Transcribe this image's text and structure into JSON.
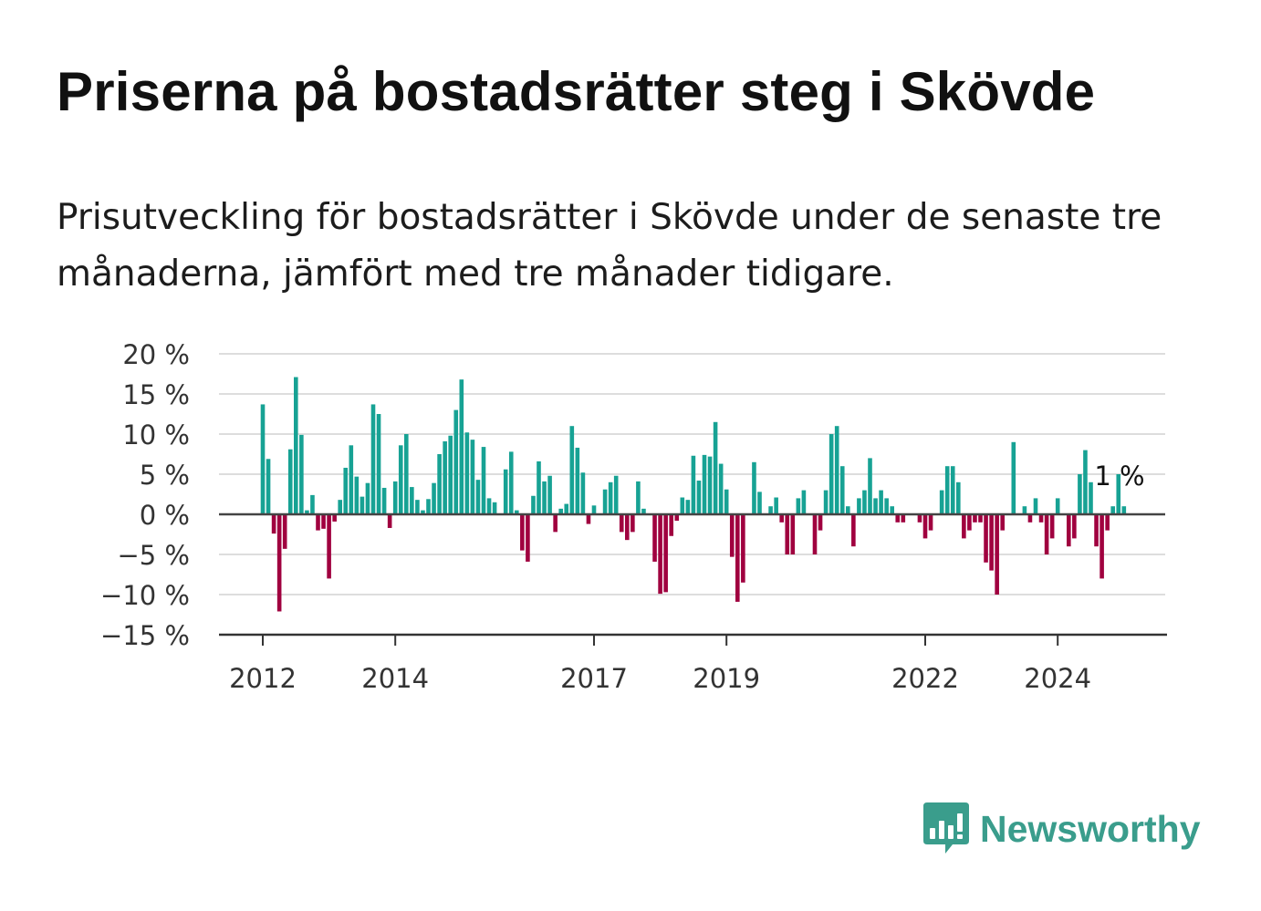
{
  "title": "Priserna på bostadsrätter steg i Skövde",
  "subtitle": "Prisutveckling för bostadsrätter i Skövde under de senaste tre månaderna, jämfört med tre månader tidigare.",
  "brand": {
    "name": "Newsworthy",
    "icon": "newsworthy-chart-bubble-icon",
    "color": "#3a9d8c"
  },
  "chart_data": {
    "type": "bar",
    "start": "2012-01",
    "frequency": "monthly",
    "y_unit": "%",
    "ylim": [
      -15,
      20
    ],
    "yticks": [
      20,
      15,
      10,
      5,
      0,
      -5,
      -10,
      -15
    ],
    "ytick_labels": [
      "20 %",
      "15 %",
      "10 %",
      "5 %",
      "0 %",
      "−5 %",
      "−10 %",
      "−15 %"
    ],
    "xticks": [
      "2012",
      "2014",
      "2017",
      "2019",
      "2022",
      "2024"
    ],
    "grid": true,
    "colors": {
      "positive": "#17a294",
      "negative": "#a0003f"
    },
    "end_label": "1 %",
    "values": [
      13.7,
      6.9,
      -2.4,
      -12.1,
      -4.3,
      8.1,
      17.1,
      9.9,
      0.5,
      2.4,
      -2.0,
      -1.8,
      -8.0,
      -0.9,
      1.8,
      5.8,
      8.6,
      4.7,
      2.2,
      3.9,
      13.7,
      12.5,
      3.3,
      -1.7,
      4.1,
      8.6,
      10.0,
      3.4,
      1.8,
      0.5,
      1.9,
      3.9,
      7.5,
      9.1,
      9.8,
      13.0,
      16.8,
      10.2,
      9.3,
      4.3,
      8.4,
      2.0,
      1.5,
      0.0,
      5.6,
      7.8,
      0.5,
      -4.5,
      -5.9,
      2.3,
      6.6,
      4.1,
      4.8,
      -2.2,
      0.7,
      1.3,
      11.0,
      8.3,
      5.2,
      -1.2,
      1.1,
      0.1,
      3.1,
      4.0,
      4.8,
      -2.2,
      -3.2,
      -2.2,
      4.1,
      0.7,
      -0.1,
      -5.9,
      -9.9,
      -9.7,
      -2.7,
      -0.8,
      2.1,
      1.8,
      7.3,
      4.2,
      7.4,
      7.2,
      11.5,
      6.3,
      3.1,
      -5.3,
      -10.9,
      -8.5,
      0.1,
      6.5,
      2.8,
      0.0,
      1.0,
      2.1,
      -1.0,
      -5.0,
      -5.0,
      2.0,
      3.0,
      0.0,
      -5.0,
      -2.0,
      3.0,
      10.0,
      11.0,
      6.0,
      1.0,
      -4.0,
      2.0,
      3.0,
      7.0,
      2.0,
      3.0,
      2.0,
      1.0,
      -1.0,
      -1.0,
      0.0,
      0.0,
      -1.0,
      -3.0,
      -2.0,
      0.0,
      3.0,
      6.0,
      6.0,
      4.0,
      -3.0,
      -2.0,
      -1.0,
      -1.0,
      -6.0,
      -7.0,
      -10.0,
      -2.0,
      0.0,
      9.0,
      0.0,
      1.0,
      -1.0,
      2.0,
      -1.0,
      -5.0,
      -3.0,
      2.0,
      0.0,
      -4.0,
      -3.0,
      5.0,
      8.0,
      4.0,
      -4.0,
      -8.0,
      -2.0,
      1.0,
      5.0,
      1.0
    ]
  }
}
